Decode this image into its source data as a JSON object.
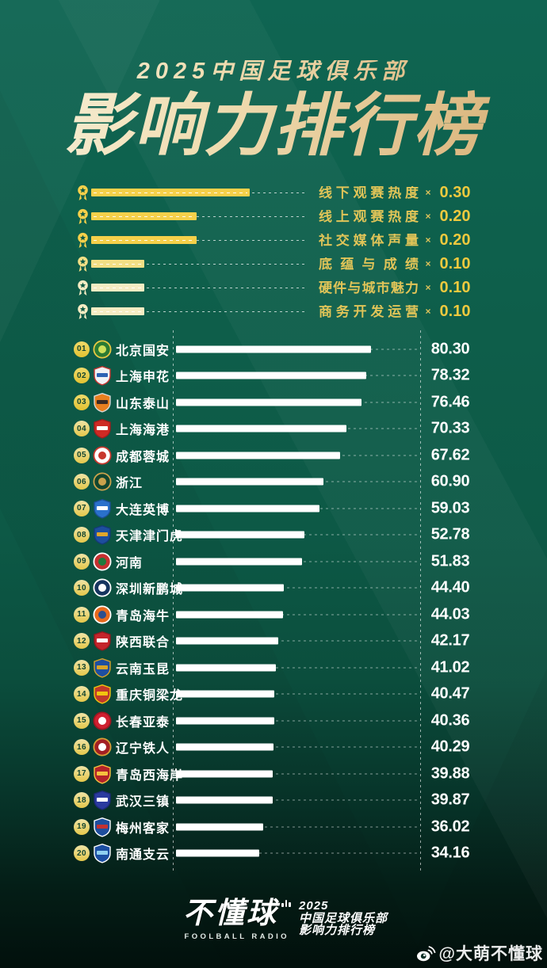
{
  "header": {
    "kicker": "2025中国足球俱乐部",
    "title": "影响力排行榜"
  },
  "weights_section": {
    "multiply_sign": "×"
  },
  "chart_data": [
    {
      "type": "bar",
      "title": "影响力指标权重",
      "categories": [
        "线下观赛热度",
        "线上观赛热度",
        "社交媒体声量",
        "底蕴与成绩",
        "硬件与城市魅力",
        "商务开发运营"
      ],
      "values": [
        0.3,
        0.2,
        0.2,
        0.1,
        0.1,
        0.1
      ],
      "legend_position": "left",
      "grid": false
    },
    {
      "type": "bar",
      "title": "2025中国足球俱乐部影响力排行榜",
      "categories": [
        "北京国安",
        "上海申花",
        "山东泰山",
        "上海海港",
        "成都蓉城",
        "浙江",
        "大连英博",
        "天津津门虎",
        "河南",
        "深圳新鹏城",
        "青岛海牛",
        "陕西联合",
        "云南玉昆",
        "重庆铜梁龙",
        "长春亚泰",
        "辽宁铁人",
        "青岛西海岸",
        "武汉三镇",
        "梅州客家",
        "南通支云"
      ],
      "values": [
        80.3,
        78.32,
        76.46,
        70.33,
        67.62,
        60.9,
        59.03,
        52.78,
        51.83,
        44.4,
        44.03,
        42.17,
        41.02,
        40.47,
        40.36,
        40.29,
        39.88,
        39.87,
        36.02,
        34.16
      ],
      "xlim": [
        0,
        100
      ],
      "grid": false
    }
  ],
  "club_logos": [
    {
      "shape": "circle",
      "body": "#2a7a33",
      "band": "#cfe05a",
      "border": "#e8c843"
    },
    {
      "shape": "shield",
      "body": "#f0f2f5",
      "band": "#2b63b4",
      "border": "#c2342f"
    },
    {
      "shape": "shield",
      "body": "#e87f1f",
      "band": "#3a2a24",
      "border": "#d8d8d8"
    },
    {
      "shape": "shield",
      "body": "#ce2a24",
      "band": "#ffffff",
      "border": "#a01d1d"
    },
    {
      "shape": "circle",
      "body": "#ffffff",
      "band": "#c8372d",
      "border": "#c8372d"
    },
    {
      "shape": "circle",
      "body": "#12462f",
      "band": "#caa24c",
      "border": "#caa24c"
    },
    {
      "shape": "shield",
      "body": "#2a71cc",
      "band": "#ffffff",
      "border": "#1c4f95"
    },
    {
      "shape": "shield",
      "body": "#1d4e9e",
      "band": "#e0a62c",
      "border": "#143a77"
    },
    {
      "shape": "circle",
      "body": "#c53030",
      "band": "#1f7a3d",
      "border": "#ffffff"
    },
    {
      "shape": "circle",
      "body": "#16355f",
      "band": "#ffffff",
      "border": "#ffffff"
    },
    {
      "shape": "circle",
      "body": "#e86a1d",
      "band": "#2c4f8f",
      "border": "#ffffff"
    },
    {
      "shape": "shield",
      "body": "#c4242b",
      "band": "#ffffff",
      "border": "#8e1a1f"
    },
    {
      "shape": "shield",
      "body": "#1e4fa0",
      "band": "#d9a427",
      "border": "#d9a427"
    },
    {
      "shape": "shield",
      "body": "#c0392b",
      "band": "#f1c40f",
      "border": "#f1c40f"
    },
    {
      "shape": "circle",
      "body": "#cf2030",
      "band": "#ffffff",
      "border": "#9e1620"
    },
    {
      "shape": "circle",
      "body": "#a31f24",
      "band": "#ffffff",
      "border": "#d9a036"
    },
    {
      "shape": "shield",
      "body": "#b3232a",
      "band": "#f5c13e",
      "border": "#f5c13e"
    },
    {
      "shape": "shield",
      "body": "#2a3a9f",
      "band": "#ffffff",
      "border": "#1d2a77"
    },
    {
      "shape": "shield",
      "body": "#1e4f9e",
      "band": "#c43131",
      "border": "#ffffff"
    },
    {
      "shape": "shield",
      "body": "#1c4fa3",
      "band": "#8fd0f0",
      "border": "#ffffff"
    }
  ],
  "footer": {
    "brand_name": "不懂球",
    "brand_sub": "FOOLBALL RADIO",
    "caption_lines": [
      "2025",
      "中国足球俱乐部",
      "影响力排行榜"
    ],
    "watermark": "@大萌不懂球"
  },
  "colors": {
    "bg_top": "#0f6552",
    "bg_bottom": "#02100c",
    "title_gold_light": "#f7efd6",
    "title_gold_dark": "#d8b279",
    "label_gold": "#e0c458",
    "value_gold": "#eec93e",
    "bar_white": "#ffffff",
    "badge_text_green": "#13452f",
    "legend_bar_colors": [
      "#f6d04a",
      "#f6d04a",
      "#f6d04a",
      "#f2df85",
      "#f5ecc3",
      "#f5ecc3"
    ]
  }
}
